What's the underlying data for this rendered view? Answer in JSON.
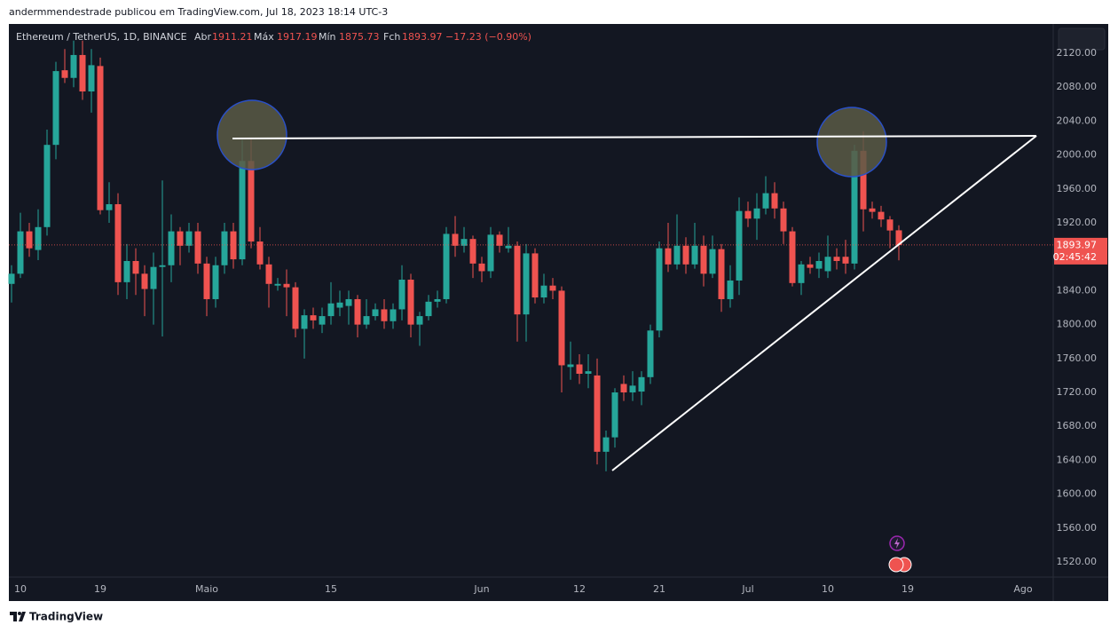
{
  "header": {
    "byline": "andermmendestrade publicou em TradingView.com, Jul 18, 2023 18:14 UTC-3",
    "symbol": "Ethereum / TetherUS, 1D, BINANCE",
    "open_label": "Abr",
    "high_label": "Máx",
    "low_label": "Mín",
    "close_label": "Fch",
    "change": "−17.23 (−0.90%)",
    "countdown": "02:45:42",
    "footer": "TradingView"
  },
  "chart_data": {
    "type": "candlestick",
    "up_color": "#26a69a",
    "down_color": "#ef5350",
    "x": [
      0,
      1,
      2,
      3,
      4,
      5,
      6,
      7,
      8,
      9,
      10,
      11,
      12,
      13,
      14,
      15,
      16,
      17,
      18,
      19,
      20,
      21,
      22,
      23,
      24,
      25,
      26,
      27,
      28,
      29,
      30,
      31,
      32,
      33,
      34,
      35,
      36,
      37,
      38,
      39,
      40,
      41,
      42,
      43,
      44,
      45,
      46,
      47,
      48,
      49,
      50,
      51,
      52,
      53,
      54,
      55,
      56,
      57,
      58,
      59,
      60,
      61,
      62,
      63,
      64,
      65,
      66,
      67,
      68,
      69,
      70,
      71,
      72,
      73,
      74,
      75,
      76,
      77,
      78,
      79,
      80,
      81,
      82,
      83,
      84,
      85,
      86,
      87,
      88,
      89,
      90,
      91,
      92,
      93,
      94,
      95,
      96,
      97,
      98,
      99,
      100
    ],
    "open": [
      1848,
      1860,
      1910,
      1888,
      1915,
      2012,
      2100,
      2091,
      2118,
      2075,
      2105,
      1935,
      1942,
      1850,
      1875,
      1860,
      1842,
      1868,
      1870,
      1910,
      1893,
      1910,
      1872,
      1830,
      1870,
      1910,
      1877,
      1993,
      1898,
      1871,
      1846,
      1848,
      1844,
      1795,
      1811,
      1800,
      1810,
      1820,
      1822,
      1830,
      1800,
      1810,
      1818,
      1804,
      1818,
      1853,
      1800,
      1810,
      1827,
      1830,
      1907,
      1893,
      1901,
      1872,
      1863,
      1906,
      1890,
      1893,
      1812,
      1884,
      1832,
      1846,
      1840,
      1750,
      1753,
      1742,
      1740,
      1650,
      1667,
      1730,
      1720,
      1721,
      1738,
      1793,
      1890,
      1871,
      1893,
      1871,
      1893,
      1860,
      1889,
      1830,
      1852,
      1934,
      1925,
      1937,
      1955,
      1937,
      1910,
      1849,
      1871,
      1866,
      1863,
      1880,
      1880,
      1872,
      2005,
      1937,
      1933,
      1924,
      1911.21
    ],
    "high": [
      1870,
      1932,
      1920,
      1936,
      2030,
      2110,
      2125,
      2135,
      2135,
      2125,
      2115,
      1968,
      1955,
      1895,
      1890,
      1870,
      1885,
      1970,
      1930,
      1915,
      1920,
      1920,
      1880,
      1880,
      1920,
      1920,
      2018,
      2020,
      1915,
      1880,
      1855,
      1865,
      1850,
      1818,
      1820,
      1820,
      1850,
      1840,
      1840,
      1835,
      1830,
      1825,
      1830,
      1825,
      1870,
      1860,
      1815,
      1835,
      1840,
      1915,
      1928,
      1915,
      1905,
      1880,
      1915,
      1910,
      1915,
      1898,
      1895,
      1890,
      1860,
      1855,
      1845,
      1780,
      1765,
      1765,
      1760,
      1675,
      1725,
      1740,
      1745,
      1745,
      1800,
      1898,
      1920,
      1930,
      1903,
      1920,
      1905,
      1905,
      1895,
      1870,
      1950,
      1945,
      1955,
      1975,
      1968,
      1945,
      1915,
      1875,
      1880,
      1885,
      1905,
      1890,
      1900,
      2012,
      2028,
      1945,
      1940,
      1928,
      1917.19
    ],
    "low": [
      1826,
      1855,
      1880,
      1876,
      1905,
      1995,
      2085,
      2080,
      2065,
      2050,
      1930,
      1920,
      1835,
      1830,
      1835,
      1810,
      1800,
      1786,
      1850,
      1870,
      1885,
      1860,
      1810,
      1820,
      1860,
      1866,
      1870,
      1890,
      1865,
      1820,
      1840,
      1810,
      1785,
      1760,
      1795,
      1790,
      1800,
      1810,
      1800,
      1785,
      1795,
      1805,
      1795,
      1795,
      1805,
      1785,
      1775,
      1805,
      1820,
      1825,
      1880,
      1885,
      1855,
      1850,
      1855,
      1885,
      1885,
      1780,
      1780,
      1825,
      1825,
      1830,
      1720,
      1735,
      1730,
      1725,
      1635,
      1627,
      1655,
      1710,
      1710,
      1705,
      1730,
      1785,
      1862,
      1865,
      1860,
      1866,
      1845,
      1855,
      1815,
      1820,
      1835,
      1915,
      1900,
      1930,
      1925,
      1895,
      1845,
      1835,
      1860,
      1855,
      1855,
      1865,
      1860,
      1865,
      1910,
      1925,
      1915,
      1890,
      1875.73
    ],
    "close": [
      1860,
      1910,
      1890,
      1915,
      2012,
      2099,
      2091,
      2118,
      2075,
      2106,
      1935,
      1942,
      1850,
      1875,
      1860,
      1842,
      1868,
      1870,
      1910,
      1893,
      1910,
      1872,
      1830,
      1870,
      1910,
      1877,
      1993,
      1898,
      1871,
      1848,
      1848,
      1844,
      1795,
      1811,
      1805,
      1810,
      1825,
      1826,
      1830,
      1800,
      1810,
      1818,
      1804,
      1818,
      1853,
      1800,
      1810,
      1827,
      1830,
      1907,
      1893,
      1901,
      1872,
      1863,
      1906,
      1893,
      1893,
      1812,
      1884,
      1832,
      1846,
      1840,
      1752,
      1753,
      1742,
      1745,
      1650,
      1667,
      1720,
      1720,
      1728,
      1738,
      1793,
      1890,
      1871,
      1893,
      1871,
      1893,
      1860,
      1889,
      1830,
      1852,
      1934,
      1925,
      1937,
      1955,
      1937,
      1910,
      1849,
      1871,
      1867,
      1875,
      1880,
      1875,
      1872,
      2005,
      1936,
      1933,
      1924,
      1911,
      1893.97
    ],
    "xlim": [
      -0.3,
      117.4
    ],
    "xticks": [
      {
        "value": 1,
        "label": "10"
      },
      {
        "value": 10,
        "label": "19"
      },
      {
        "value": 22,
        "label": "Maio"
      },
      {
        "value": 36,
        "label": "15"
      },
      {
        "value": 53,
        "label": "Jun"
      },
      {
        "value": 64,
        "label": "12"
      },
      {
        "value": 73,
        "label": "21"
      },
      {
        "value": 83,
        "label": "Jul"
      },
      {
        "value": 92,
        "label": "10"
      },
      {
        "value": 101,
        "label": "19"
      },
      {
        "value": 114,
        "label": "Ago"
      }
    ],
    "ylim": [
      1502.2,
      2154.6
    ],
    "yticks": [
      {
        "value": 1520,
        "label": "1520.00"
      },
      {
        "value": 1560,
        "label": "1560.00"
      },
      {
        "value": 1600,
        "label": "1600.00"
      },
      {
        "value": 1640,
        "label": "1640.00"
      },
      {
        "value": 1680,
        "label": "1680.00"
      },
      {
        "value": 1720,
        "label": "1720.00"
      },
      {
        "value": 1760,
        "label": "1760.00"
      },
      {
        "value": 1800,
        "label": "1800.00"
      },
      {
        "value": 1840,
        "label": "1840.00"
      },
      {
        "value": 1880,
        "label": "1880.00"
      },
      {
        "value": 1920,
        "label": "1920.00"
      },
      {
        "value": 1960,
        "label": "1960.00"
      },
      {
        "value": 2000,
        "label": "2000.00"
      },
      {
        "value": 2040,
        "label": "2040.00"
      },
      {
        "value": 2080,
        "label": "2080.00"
      },
      {
        "value": 2120,
        "label": "2120.00"
      }
    ]
  }
}
